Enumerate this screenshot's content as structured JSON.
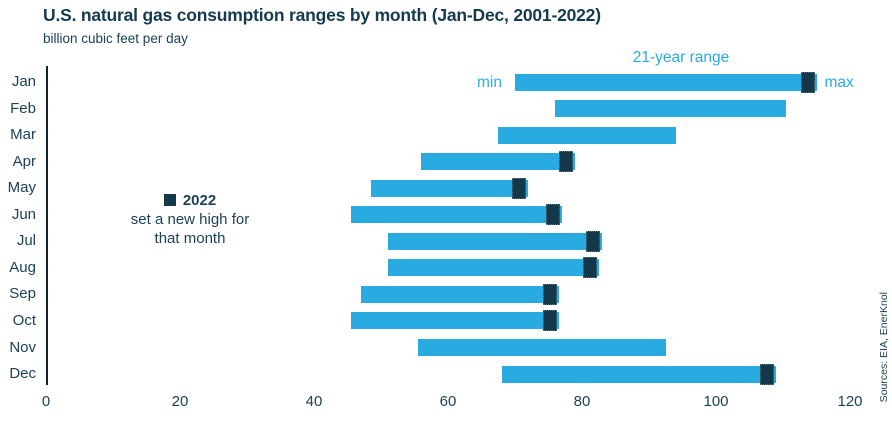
{
  "header": {
    "title": "U.S. natural gas consumption ranges by month (Jan-Dec, 2001-2022)",
    "subtitle": "billion cubic feet per day"
  },
  "legend": {
    "range_label": "21-year range",
    "min_label": "min",
    "max_label": "max"
  },
  "annotation": {
    "year": "2022",
    "line2": "set a new high for",
    "line3": "that month"
  },
  "source": "Sources: EIA, EnerKnol",
  "colors": {
    "bar": "#29abe2",
    "marker_2022": "#133849",
    "text_dark": "#1a4255",
    "accent_text": "#29abe2",
    "axis_line": "#0d2433"
  },
  "chart_data": {
    "type": "bar",
    "subtype": "horizontal-range",
    "title": "U.S. natural gas consumption ranges by month (Jan-Dec, 2001-2022)",
    "ylabel": "billion cubic feet per day",
    "categories": [
      "Jan",
      "Feb",
      "Mar",
      "Apr",
      "May",
      "Jun",
      "Jul",
      "Aug",
      "Sep",
      "Oct",
      "Nov",
      "Dec"
    ],
    "series": [
      {
        "name": "21-year min",
        "values": [
          70,
          76,
          67.5,
          56,
          48.5,
          45.5,
          51,
          51,
          47,
          45.5,
          55.5,
          68
        ]
      },
      {
        "name": "21-year max",
        "values": [
          115,
          110.5,
          94,
          79,
          72,
          77,
          83,
          82.5,
          76.5,
          76.5,
          92.5,
          109
        ]
      },
      {
        "name": "2022 (new monthly high)",
        "values": [
          115,
          null,
          null,
          79,
          72,
          77,
          83,
          82.5,
          76.5,
          76.5,
          null,
          109
        ]
      }
    ],
    "x_ticks": [
      0,
      20,
      40,
      60,
      80,
      100,
      120
    ],
    "xlim": [
      0,
      120
    ],
    "grid": false,
    "legend_position": "top-right-inline"
  }
}
